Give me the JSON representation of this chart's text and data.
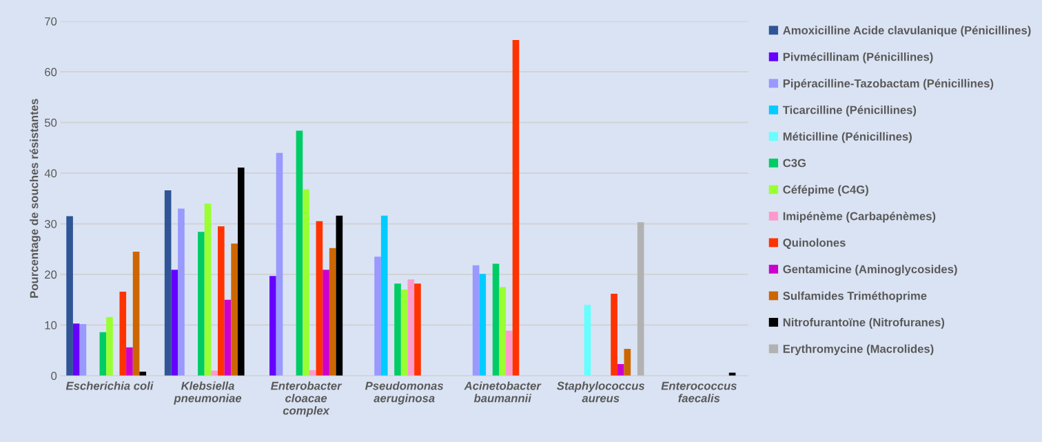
{
  "chart_data": {
    "type": "bar",
    "ylabel": "Pourcentage de souches résistantes",
    "categories": [
      "Escherichia coli",
      "Klebsiella\npneumoniae",
      "Enterobacter\ncloacae\ncomplex",
      "Pseudomonas\naeruginosa",
      "Acinetobacter\nbaumannii",
      "Staphylococcus\naureus",
      "Enterococcus\nfaecalis"
    ],
    "ylim": [
      0,
      70
    ],
    "yticks": [
      0,
      10,
      20,
      30,
      40,
      50,
      60,
      70
    ],
    "grid": "y",
    "legend": "right",
    "series": [
      {
        "name": "Amoxicilline Acide clavulanique (Pénicillines)",
        "color": "#2f5597",
        "values": [
          31.5,
          36.6,
          null,
          null,
          null,
          null,
          null
        ]
      },
      {
        "name": "Pivmécillinam (Pénicillines)",
        "color": "#6600ff",
        "values": [
          10.3,
          20.9,
          19.7,
          null,
          null,
          null,
          null
        ]
      },
      {
        "name": "Pipéracilline-Tazobactam (Pénicillines)",
        "color": "#9999ff",
        "values": [
          10.2,
          33.0,
          44.0,
          23.5,
          21.8,
          null,
          null
        ]
      },
      {
        "name": "Ticarcilline (Pénicillines)",
        "color": "#00ccff",
        "values": [
          null,
          null,
          null,
          31.6,
          20.1,
          null,
          null
        ]
      },
      {
        "name": "Méticilline (Pénicillines)",
        "color": "#66ffff",
        "values": [
          null,
          null,
          null,
          null,
          null,
          14.0,
          null
        ]
      },
      {
        "name": "C3G",
        "color": "#00cc66",
        "values": [
          8.6,
          28.4,
          48.4,
          18.2,
          22.1,
          null,
          null
        ]
      },
      {
        "name": "Céfépime (C4G)",
        "color": "#99ff33",
        "values": [
          11.6,
          34.0,
          36.8,
          17.0,
          17.5,
          null,
          null
        ]
      },
      {
        "name": "Imipénème (Carbapénèmes)",
        "color": "#ff99cc",
        "values": [
          null,
          1.0,
          1.1,
          19.0,
          8.9,
          null,
          null
        ]
      },
      {
        "name": "Quinolones",
        "color": "#ff3300",
        "values": [
          16.6,
          29.5,
          30.5,
          18.2,
          66.3,
          16.2,
          null
        ]
      },
      {
        "name": "Gentamicine (Aminoglycosides)",
        "color": "#cc00cc",
        "values": [
          5.6,
          15.0,
          20.9,
          null,
          null,
          2.3,
          null
        ]
      },
      {
        "name": "Sulfamides Triméthoprime",
        "color": "#cc6600",
        "values": [
          24.5,
          26.1,
          25.2,
          null,
          null,
          5.3,
          null
        ]
      },
      {
        "name": "Nitrofurantoïne (Nitrofuranes)",
        "color": "#000000",
        "values": [
          0.8,
          41.1,
          31.6,
          null,
          null,
          null,
          0.6
        ]
      },
      {
        "name": "Erythromycine (Macrolides)",
        "color": "#b2b2b2",
        "values": [
          null,
          null,
          null,
          null,
          null,
          30.3,
          null
        ]
      }
    ]
  }
}
